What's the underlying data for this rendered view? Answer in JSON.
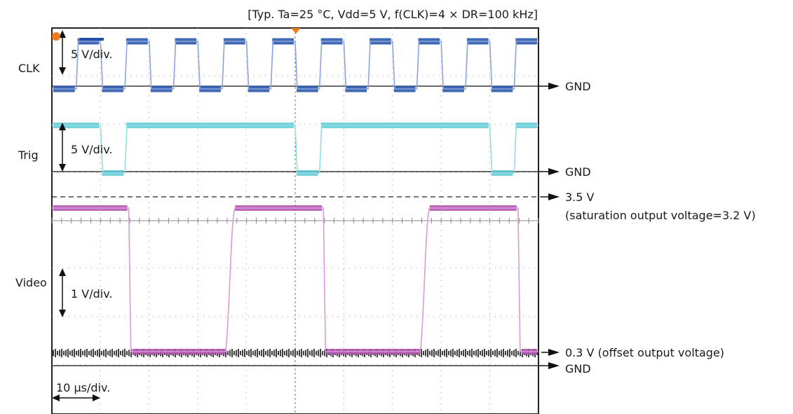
{
  "chart_data": {
    "type": "line",
    "title": "",
    "conditions": "[Typ. Ta=25 °C, Vdd=5 V, f(CLK)=4 × DR=100 kHz]",
    "grid": true,
    "time_scale": "10 μs/div.",
    "colors": {
      "clk": "#1f4fa8",
      "trig": "#5cc8d4",
      "video": "#b04fb0",
      "noise": "#2a2a2a",
      "grid": "#9a9a9a",
      "marker": "#f07a1a"
    },
    "channels": [
      {
        "key": "clk",
        "name": "CLK",
        "scale": "5 V/div.",
        "ground_label": "GND",
        "edges_div": [
          0.5,
          1.0,
          1.5,
          2.0,
          2.5,
          3.0,
          3.5,
          4.0,
          4.5,
          5.0,
          5.5,
          6.0,
          6.5,
          7.0,
          7.5,
          8.0,
          8.5,
          9.0,
          9.5
        ],
        "initial_state": "low"
      },
      {
        "key": "trig",
        "name": "Trig",
        "scale": "5 V/div.",
        "ground_label": "GND",
        "edges_div": [
          1.0,
          1.5,
          5.0,
          5.5,
          9.0,
          9.5
        ],
        "initial_state": "high"
      },
      {
        "key": "video",
        "name": "Video",
        "scale": "1 V/div.",
        "ground_label": "GND",
        "edges_div": [
          1.58,
          3.62,
          5.58,
          7.62,
          9.58
        ],
        "initial_state": "high"
      }
    ],
    "levels": [
      {
        "channel": "video",
        "value_v": 3.5,
        "label": "3.5 V",
        "note": "(saturation output voltage=3.2 V)"
      },
      {
        "channel": "video",
        "value_v": 0.3,
        "label": "0.3 V (offset output voltage)"
      }
    ]
  }
}
